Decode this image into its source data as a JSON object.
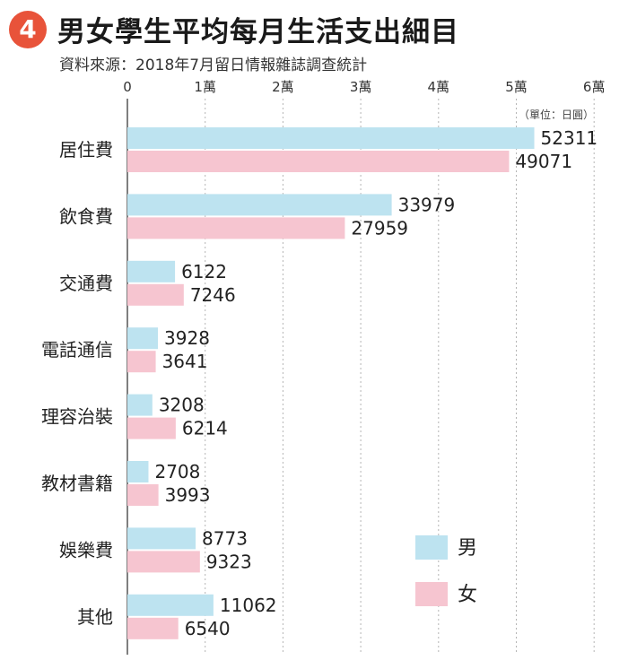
{
  "header": {
    "badge": "4",
    "title": "男女學生平均每月生活支出細目",
    "subtitle": "資料來源：2018年7月留日情報雜誌調查統計"
  },
  "colors": {
    "male": "#bde3f0",
    "female": "#f6c5d0",
    "badge": "#e8533a",
    "gridline": "#b5b5b5",
    "axis": "#555555"
  },
  "chart_data": {
    "type": "bar",
    "orientation": "horizontal",
    "unit_label": "（單位：日圓）",
    "xlim": [
      0,
      60000
    ],
    "ticks": [
      {
        "value": 0,
        "label": "0"
      },
      {
        "value": 10000,
        "label": "1萬"
      },
      {
        "value": 20000,
        "label": "2萬"
      },
      {
        "value": 30000,
        "label": "3萬"
      },
      {
        "value": 40000,
        "label": "4萬"
      },
      {
        "value": 50000,
        "label": "5萬"
      },
      {
        "value": 60000,
        "label": "6萬"
      }
    ],
    "grid": true,
    "legend_position": "bottom-right",
    "categories": [
      "居住費",
      "飲食費",
      "交通費",
      "電話通信",
      "理容治裝",
      "教材書籍",
      "娛樂費",
      "其他"
    ],
    "series": [
      {
        "name": "男",
        "color_key": "male",
        "values": [
          52311,
          33979,
          6122,
          3928,
          3208,
          2708,
          8773,
          11062
        ]
      },
      {
        "name": "女",
        "color_key": "female",
        "values": [
          49071,
          27959,
          7246,
          3641,
          6214,
          3993,
          9323,
          6540
        ]
      }
    ]
  }
}
